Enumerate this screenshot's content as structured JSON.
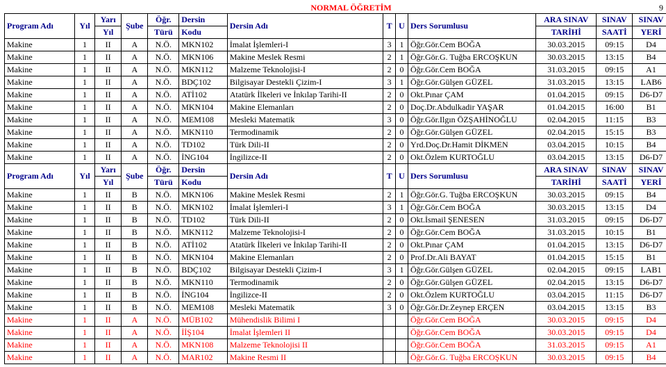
{
  "title": "NORMAL ÖĞRETİM",
  "page_number": "9",
  "headers": {
    "program": "Program Adı",
    "yil": "Yıl",
    "yari_top": "Yarı",
    "yari_bot": "Yıl",
    "sube": "Şube",
    "ogr_top": "Öğr.",
    "ogr_bot": "Türü",
    "kod_top": "Dersin",
    "kod_bot": "Kodu",
    "ders": "Dersin Adı",
    "t": "T",
    "u": "U",
    "sorumlu": "Ders Sorumlusu",
    "tarih_top": "ARA SINAV",
    "tarih_bot": "TARİHİ",
    "saat_top": "SINAV",
    "saat_bot": "SAATİ",
    "yeri_top": "SINAV",
    "yeri_bot": "YERİ"
  },
  "rows1": [
    {
      "prog": "Makine",
      "yil": "1",
      "yari": "II",
      "sube": "A",
      "ogr": "N.Ö.",
      "kod": "MKN102",
      "ders": "İmalat İşlemleri-I",
      "t": "3",
      "u": "1",
      "sor": "Öğr.Gör.Cem BOĞA",
      "tar": "30.03.2015",
      "saat": "09:15",
      "yeri": "D4"
    },
    {
      "prog": "Makine",
      "yil": "1",
      "yari": "II",
      "sube": "A",
      "ogr": "N.Ö.",
      "kod": "MKN106",
      "ders": "Makine Meslek Resmi",
      "t": "2",
      "u": "1",
      "sor": "Öğr.Gör.G. Tuğba ERCOŞKUN",
      "tar": "30.03.2015",
      "saat": "13:15",
      "yeri": "B4"
    },
    {
      "prog": "Makine",
      "yil": "1",
      "yari": "II",
      "sube": "A",
      "ogr": "N.Ö.",
      "kod": "MKN112",
      "ders": "Malzeme Teknolojisi-I",
      "t": "2",
      "u": "0",
      "sor": "Öğr.Gör.Cem BOĞA",
      "tar": "31.03.2015",
      "saat": "09:15",
      "yeri": "A1"
    },
    {
      "prog": "Makine",
      "yil": "1",
      "yari": "II",
      "sube": "A",
      "ogr": "N.Ö.",
      "kod": "BDÇ102",
      "ders": "Bilgisayar Destekli Çizim-I",
      "t": "3",
      "u": "1",
      "sor": "Öğr.Gör.Gülşen GÜZEL",
      "tar": "31.03.2015",
      "saat": "13:15",
      "yeri": "LAB6"
    },
    {
      "prog": "Makine",
      "yil": "1",
      "yari": "II",
      "sube": "A",
      "ogr": "N.Ö.",
      "kod": "ATİ102",
      "ders": "Atatürk İlkeleri ve İnkılap Tarihi-II",
      "t": "2",
      "u": "0",
      "sor": "Okt.Pınar ÇAM",
      "tar": "01.04.2015",
      "saat": "09:15",
      "yeri": "D6-D7"
    },
    {
      "prog": "Makine",
      "yil": "1",
      "yari": "II",
      "sube": "A",
      "ogr": "N.Ö.",
      "kod": "MKN104",
      "ders": "Makine Elemanları",
      "t": "2",
      "u": "0",
      "sor": "Doç.Dr.Abdulkadir YAŞAR",
      "tar": "01.04.2015",
      "saat": "16:00",
      "yeri": "B1"
    },
    {
      "prog": "Makine",
      "yil": "1",
      "yari": "II",
      "sube": "A",
      "ogr": "N.Ö.",
      "kod": "MEM108",
      "ders": "Mesleki Matematik",
      "t": "3",
      "u": "0",
      "sor": "Öğr.Gör.Ilgın ÖZŞAHİNOĞLU",
      "tar": "02.04.2015",
      "saat": "11:15",
      "yeri": "B3"
    },
    {
      "prog": "Makine",
      "yil": "1",
      "yari": "II",
      "sube": "A",
      "ogr": "N.Ö.",
      "kod": "MKN110",
      "ders": "Termodinamik",
      "t": "2",
      "u": "0",
      "sor": "Öğr.Gör.Gülşen GÜZEL",
      "tar": "02.04.2015",
      "saat": "15:15",
      "yeri": "B3"
    },
    {
      "prog": "Makine",
      "yil": "1",
      "yari": "II",
      "sube": "A",
      "ogr": "N.Ö.",
      "kod": "TD102",
      "ders": "Türk Dili-II",
      "t": "2",
      "u": "0",
      "sor": "Yrd.Doç.Dr.Hamit DİKMEN",
      "tar": "03.04.2015",
      "saat": "10:15",
      "yeri": "B4"
    },
    {
      "prog": "Makine",
      "yil": "1",
      "yari": "II",
      "sube": "A",
      "ogr": "N.Ö.",
      "kod": "İNG104",
      "ders": "İngilizce-II",
      "t": "2",
      "u": "0",
      "sor": "Okt.Özlem KURTOĞLU",
      "tar": "03.04.2015",
      "saat": "13:15",
      "yeri": "D6-D7"
    }
  ],
  "rows2": [
    {
      "prog": "Makine",
      "yil": "1",
      "yari": "II",
      "sube": "B",
      "ogr": "N.Ö.",
      "kod": "MKN106",
      "ders": "Makine Meslek Resmi",
      "t": "2",
      "u": "1",
      "sor": "Öğr.Gör.G. Tuğba ERCOŞKUN",
      "tar": "30.03.2015",
      "saat": "09:15",
      "yeri": "B4"
    },
    {
      "prog": "Makine",
      "yil": "1",
      "yari": "II",
      "sube": "B",
      "ogr": "N.Ö.",
      "kod": "MKN102",
      "ders": "İmalat İşlemleri-I",
      "t": "3",
      "u": "1",
      "sor": "Öğr.Gör.Cem BOĞA",
      "tar": "30.03.2015",
      "saat": "13:15",
      "yeri": "D4"
    },
    {
      "prog": "Makine",
      "yil": "1",
      "yari": "II",
      "sube": "B",
      "ogr": "N.Ö.",
      "kod": "TD102",
      "ders": "Türk Dili-II",
      "t": "2",
      "u": "0",
      "sor": "Okt.İsmail ŞENESEN",
      "tar": "31.03.2015",
      "saat": "09:15",
      "yeri": "D6-D7"
    },
    {
      "prog": "Makine",
      "yil": "1",
      "yari": "II",
      "sube": "B",
      "ogr": "N.Ö.",
      "kod": "MKN112",
      "ders": "Malzeme Teknolojisi-I",
      "t": "2",
      "u": "0",
      "sor": "Öğr.Gör.Cem BOĞA",
      "tar": "31.03.2015",
      "saat": "10:15",
      "yeri": "B1"
    },
    {
      "prog": "Makine",
      "yil": "1",
      "yari": "II",
      "sube": "B",
      "ogr": "N.Ö.",
      "kod": "ATİ102",
      "ders": "Atatürk İlkeleri ve İnkılap Tarihi-II",
      "t": "2",
      "u": "0",
      "sor": "Okt.Pınar ÇAM",
      "tar": "01.04.2015",
      "saat": "13:15",
      "yeri": "D6-D7"
    },
    {
      "prog": "Makine",
      "yil": "1",
      "yari": "II",
      "sube": "B",
      "ogr": "N.Ö.",
      "kod": "MKN104",
      "ders": "Makine Elemanları",
      "t": "2",
      "u": "0",
      "sor": "Prof.Dr.Ali BAYAT",
      "tar": "01.04.2015",
      "saat": "15:15",
      "yeri": "B1"
    },
    {
      "prog": "Makine",
      "yil": "1",
      "yari": "II",
      "sube": "B",
      "ogr": "N.Ö.",
      "kod": "BDÇ102",
      "ders": "Bilgisayar Destekli Çizim-I",
      "t": "3",
      "u": "1",
      "sor": "Öğr.Gör.Gülşen GÜZEL",
      "tar": "02.04.2015",
      "saat": "09:15",
      "yeri": "LAB1"
    },
    {
      "prog": "Makine",
      "yil": "1",
      "yari": "II",
      "sube": "B",
      "ogr": "N.Ö.",
      "kod": "MKN110",
      "ders": "Termodinamik",
      "t": "2",
      "u": "0",
      "sor": "Öğr.Gör.Gülşen GÜZEL",
      "tar": "02.04.2015",
      "saat": "13:15",
      "yeri": "D6-D7"
    },
    {
      "prog": "Makine",
      "yil": "1",
      "yari": "II",
      "sube": "B",
      "ogr": "N.Ö.",
      "kod": "İNG104",
      "ders": "İngilizce-II",
      "t": "2",
      "u": "0",
      "sor": "Okt.Özlem KURTOĞLU",
      "tar": "03.04.2015",
      "saat": "11:15",
      "yeri": "D6-D7"
    },
    {
      "prog": "Makine",
      "yil": "1",
      "yari": "II",
      "sube": "B",
      "ogr": "N.Ö.",
      "kod": "MEM108",
      "ders": "Mesleki Matematik",
      "t": "3",
      "u": "0",
      "sor": "Öğr.Gör.Dr.Zeynep ERÇEN",
      "tar": "03.04.2015",
      "saat": "13:15",
      "yeri": "B3"
    },
    {
      "red": true,
      "prog": "Makine",
      "yil": "1",
      "yari": "II",
      "sube": "A",
      "ogr": "N.Ö.",
      "kod": "MÜB102",
      "ders": "Mühendislik Bilimi I",
      "t": "",
      "u": "",
      "sor": "Öğr.Gör.Cem BOĞA",
      "tar": "30.03.2015",
      "saat": "09:15",
      "yeri": "D4"
    },
    {
      "red": true,
      "prog": "Makine",
      "yil": "1",
      "yari": "II",
      "sube": "A",
      "ogr": "N.Ö.",
      "kod": "İİŞ104",
      "ders": "İmalat İşlemleri II",
      "t": "",
      "u": "",
      "sor": "Öğr.Gör.Cem BOĞA",
      "tar": "30.03.2015",
      "saat": "09:15",
      "yeri": "D4"
    },
    {
      "red": true,
      "prog": "Makine",
      "yil": "1",
      "yari": "II",
      "sube": "A",
      "ogr": "N.Ö.",
      "kod": "MKN108",
      "ders": "Malzeme Teknolojisi II",
      "t": "",
      "u": "",
      "sor": "Öğr.Gör.Cem BOĞA",
      "tar": "31.03.2015",
      "saat": "09:15",
      "yeri": "A1"
    },
    {
      "red": true,
      "prog": "Makine",
      "yil": "1",
      "yari": "II",
      "sube": "A",
      "ogr": "N.Ö.",
      "kod": "MAR102",
      "ders": "Makine Resmi II",
      "t": "",
      "u": "",
      "sor": "Öğr.Gör.G. Tuğba ERCOŞKUN",
      "tar": "30.03.2015",
      "saat": "09:15",
      "yeri": "B4"
    }
  ]
}
